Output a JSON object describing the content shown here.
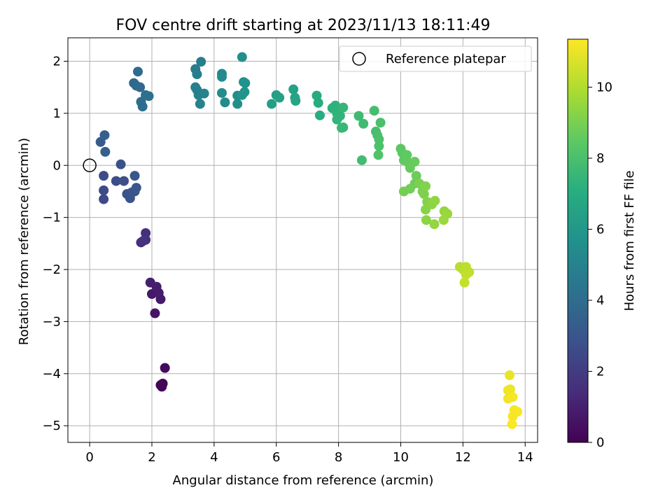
{
  "chart_data": {
    "type": "scatter",
    "title": "FOV centre drift starting at 2023/11/13 18:11:49",
    "xlabel": "Angular distance from reference (arcmin)",
    "ylabel": "Rotation from reference (arcmin)",
    "xlim": [
      -0.7,
      14.4
    ],
    "ylim": [
      -5.32,
      2.45
    ],
    "xticks": [
      0,
      2,
      4,
      6,
      8,
      10,
      12,
      14
    ],
    "xtick_labels": [
      "0",
      "2",
      "4",
      "6",
      "8",
      "10",
      "12",
      "14"
    ],
    "yticks": [
      -5,
      -4,
      -3,
      -2,
      -1,
      0,
      1,
      2
    ],
    "ytick_labels": [
      "−5",
      "−4",
      "−3",
      "−2",
      "−1",
      "0",
      "1",
      "2"
    ],
    "grid": true,
    "legend": {
      "position": "top-right",
      "entries": [
        "Reference platepar"
      ]
    },
    "reference_point": {
      "x": 0,
      "y": 0,
      "label": "Reference platepar"
    },
    "colorbar": {
      "label": "Hours from first FF file",
      "colormap": "viridis",
      "range": [
        0,
        11.35
      ],
      "ticks": [
        0,
        2,
        4,
        6,
        8,
        10
      ],
      "tick_labels": [
        "0",
        "2",
        "4",
        "6",
        "8",
        "10"
      ]
    },
    "points": [
      {
        "x": 2.32,
        "y": -4.25,
        "c": 0.0
      },
      {
        "x": 2.35,
        "y": -4.19,
        "c": 0.1
      },
      {
        "x": 2.28,
        "y": -4.22,
        "c": 0.15
      },
      {
        "x": 2.42,
        "y": -3.89,
        "c": 0.3
      },
      {
        "x": 2.1,
        "y": -2.84,
        "c": 0.6
      },
      {
        "x": 2.0,
        "y": -2.47,
        "c": 0.75
      },
      {
        "x": 2.28,
        "y": -2.57,
        "c": 0.8
      },
      {
        "x": 2.22,
        "y": -2.45,
        "c": 0.85
      },
      {
        "x": 2.15,
        "y": -2.33,
        "c": 0.9
      },
      {
        "x": 1.95,
        "y": -2.25,
        "c": 0.95
      },
      {
        "x": 1.8,
        "y": -1.3,
        "c": 1.5
      },
      {
        "x": 1.65,
        "y": -1.48,
        "c": 1.55
      },
      {
        "x": 1.8,
        "y": -1.43,
        "c": 1.6
      },
      {
        "x": 1.72,
        "y": -1.45,
        "c": 1.65
      },
      {
        "x": 0.45,
        "y": -0.65,
        "c": 2.5
      },
      {
        "x": 0.45,
        "y": -0.48,
        "c": 2.55
      },
      {
        "x": 0.45,
        "y": -0.2,
        "c": 2.6
      },
      {
        "x": 0.85,
        "y": -0.3,
        "c": 2.7
      },
      {
        "x": 1.1,
        "y": -0.3,
        "c": 2.75
      },
      {
        "x": 1.0,
        "y": 0.02,
        "c": 2.8
      },
      {
        "x": 1.2,
        "y": -0.55,
        "c": 2.85
      },
      {
        "x": 1.3,
        "y": -0.63,
        "c": 2.9
      },
      {
        "x": 1.35,
        "y": -0.52,
        "c": 2.95
      },
      {
        "x": 1.45,
        "y": -0.5,
        "c": 3.0
      },
      {
        "x": 1.5,
        "y": -0.43,
        "c": 3.05
      },
      {
        "x": 1.45,
        "y": -0.2,
        "c": 3.1
      },
      {
        "x": 0.35,
        "y": 0.45,
        "c": 3.3
      },
      {
        "x": 0.48,
        "y": 0.58,
        "c": 3.35
      },
      {
        "x": 0.5,
        "y": 0.26,
        "c": 3.4
      },
      {
        "x": 1.42,
        "y": 1.58,
        "c": 3.8
      },
      {
        "x": 1.5,
        "y": 1.53,
        "c": 3.85
      },
      {
        "x": 1.62,
        "y": 1.5,
        "c": 3.9
      },
      {
        "x": 1.55,
        "y": 1.8,
        "c": 3.95
      },
      {
        "x": 1.65,
        "y": 1.22,
        "c": 4.0
      },
      {
        "x": 1.7,
        "y": 1.13,
        "c": 4.05
      },
      {
        "x": 1.8,
        "y": 1.35,
        "c": 4.1
      },
      {
        "x": 1.9,
        "y": 1.33,
        "c": 4.15
      },
      {
        "x": 3.4,
        "y": 1.85,
        "c": 4.7
      },
      {
        "x": 3.45,
        "y": 1.75,
        "c": 4.75
      },
      {
        "x": 3.58,
        "y": 1.99,
        "c": 4.8
      },
      {
        "x": 3.4,
        "y": 1.5,
        "c": 4.85
      },
      {
        "x": 3.45,
        "y": 1.45,
        "c": 4.9
      },
      {
        "x": 3.5,
        "y": 1.35,
        "c": 4.95
      },
      {
        "x": 3.55,
        "y": 1.18,
        "c": 5.0
      },
      {
        "x": 3.68,
        "y": 1.38,
        "c": 5.05
      },
      {
        "x": 4.25,
        "y": 1.76,
        "c": 5.3
      },
      {
        "x": 4.25,
        "y": 1.7,
        "c": 5.35
      },
      {
        "x": 4.35,
        "y": 1.21,
        "c": 5.4
      },
      {
        "x": 4.25,
        "y": 1.39,
        "c": 5.45
      },
      {
        "x": 4.75,
        "y": 1.34,
        "c": 5.5
      },
      {
        "x": 4.75,
        "y": 1.18,
        "c": 5.55
      },
      {
        "x": 4.9,
        "y": 2.08,
        "c": 5.6
      },
      {
        "x": 4.95,
        "y": 1.6,
        "c": 5.65
      },
      {
        "x": 5.0,
        "y": 1.58,
        "c": 5.7
      },
      {
        "x": 4.98,
        "y": 1.41,
        "c": 5.75
      },
      {
        "x": 4.9,
        "y": 1.35,
        "c": 5.8
      },
      {
        "x": 5.85,
        "y": 1.18,
        "c": 6.3
      },
      {
        "x": 6.0,
        "y": 1.35,
        "c": 6.35
      },
      {
        "x": 6.1,
        "y": 1.3,
        "c": 6.4
      },
      {
        "x": 6.55,
        "y": 1.46,
        "c": 6.5
      },
      {
        "x": 6.6,
        "y": 1.3,
        "c": 6.55
      },
      {
        "x": 6.62,
        "y": 1.24,
        "c": 6.6
      },
      {
        "x": 7.3,
        "y": 1.34,
        "c": 6.9
      },
      {
        "x": 7.35,
        "y": 1.2,
        "c": 6.95
      },
      {
        "x": 7.4,
        "y": 0.96,
        "c": 7.0
      },
      {
        "x": 7.8,
        "y": 1.1,
        "c": 7.2
      },
      {
        "x": 7.9,
        "y": 1.15,
        "c": 7.25
      },
      {
        "x": 7.95,
        "y": 1.0,
        "c": 7.3
      },
      {
        "x": 8.05,
        "y": 0.95,
        "c": 7.35
      },
      {
        "x": 7.95,
        "y": 0.88,
        "c": 7.4
      },
      {
        "x": 8.15,
        "y": 1.11,
        "c": 7.45
      },
      {
        "x": 8.15,
        "y": 0.73,
        "c": 7.5
      },
      {
        "x": 8.1,
        "y": 0.72,
        "c": 7.55
      },
      {
        "x": 8.65,
        "y": 0.95,
        "c": 7.7
      },
      {
        "x": 8.8,
        "y": 0.8,
        "c": 7.75
      },
      {
        "x": 8.75,
        "y": 0.1,
        "c": 7.8
      },
      {
        "x": 9.15,
        "y": 1.05,
        "c": 7.85
      },
      {
        "x": 9.2,
        "y": 0.65,
        "c": 7.9
      },
      {
        "x": 9.25,
        "y": 0.58,
        "c": 7.95
      },
      {
        "x": 9.35,
        "y": 0.82,
        "c": 8.0
      },
      {
        "x": 9.3,
        "y": 0.5,
        "c": 8.05
      },
      {
        "x": 9.3,
        "y": 0.37,
        "c": 8.1
      },
      {
        "x": 9.28,
        "y": 0.2,
        "c": 8.15
      },
      {
        "x": 10.0,
        "y": 0.32,
        "c": 8.4
      },
      {
        "x": 10.05,
        "y": 0.24,
        "c": 8.45
      },
      {
        "x": 10.1,
        "y": 0.1,
        "c": 8.5
      },
      {
        "x": 10.2,
        "y": 0.2,
        "c": 8.55
      },
      {
        "x": 10.25,
        "y": 0.05,
        "c": 8.6
      },
      {
        "x": 10.3,
        "y": -0.05,
        "c": 8.65
      },
      {
        "x": 10.45,
        "y": 0.07,
        "c": 8.7
      },
      {
        "x": 10.5,
        "y": -0.2,
        "c": 8.75
      },
      {
        "x": 10.45,
        "y": -0.35,
        "c": 8.8
      },
      {
        "x": 10.3,
        "y": -0.45,
        "c": 8.85
      },
      {
        "x": 10.1,
        "y": -0.5,
        "c": 8.9
      },
      {
        "x": 10.6,
        "y": -0.35,
        "c": 9.0
      },
      {
        "x": 10.7,
        "y": -0.5,
        "c": 9.05
      },
      {
        "x": 10.75,
        "y": -0.55,
        "c": 9.1
      },
      {
        "x": 10.8,
        "y": -0.4,
        "c": 9.15
      },
      {
        "x": 10.85,
        "y": -0.7,
        "c": 9.2
      },
      {
        "x": 10.8,
        "y": -0.85,
        "c": 9.25
      },
      {
        "x": 10.82,
        "y": -1.05,
        "c": 9.3
      },
      {
        "x": 11.0,
        "y": -0.75,
        "c": 9.35
      },
      {
        "x": 11.1,
        "y": -0.68,
        "c": 9.4
      },
      {
        "x": 11.08,
        "y": -1.13,
        "c": 9.45
      },
      {
        "x": 11.4,
        "y": -0.88,
        "c": 9.5
      },
      {
        "x": 11.5,
        "y": -0.93,
        "c": 9.55
      },
      {
        "x": 11.38,
        "y": -1.05,
        "c": 9.6
      },
      {
        "x": 11.9,
        "y": -1.95,
        "c": 10.1
      },
      {
        "x": 12.0,
        "y": -2.0,
        "c": 10.15
      },
      {
        "x": 12.1,
        "y": -1.95,
        "c": 10.2
      },
      {
        "x": 12.2,
        "y": -2.05,
        "c": 10.25
      },
      {
        "x": 12.1,
        "y": -2.1,
        "c": 10.3
      },
      {
        "x": 12.05,
        "y": -2.25,
        "c": 10.35
      },
      {
        "x": 13.5,
        "y": -4.03,
        "c": 11.0
      },
      {
        "x": 13.45,
        "y": -4.32,
        "c": 11.05
      },
      {
        "x": 13.52,
        "y": -4.3,
        "c": 11.1
      },
      {
        "x": 13.45,
        "y": -4.48,
        "c": 11.15
      },
      {
        "x": 13.6,
        "y": -4.45,
        "c": 11.2
      },
      {
        "x": 13.65,
        "y": -4.7,
        "c": 11.22
      },
      {
        "x": 13.6,
        "y": -4.82,
        "c": 11.25
      },
      {
        "x": 13.75,
        "y": -4.73,
        "c": 11.28
      },
      {
        "x": 13.58,
        "y": -4.97,
        "c": 11.3
      }
    ]
  }
}
